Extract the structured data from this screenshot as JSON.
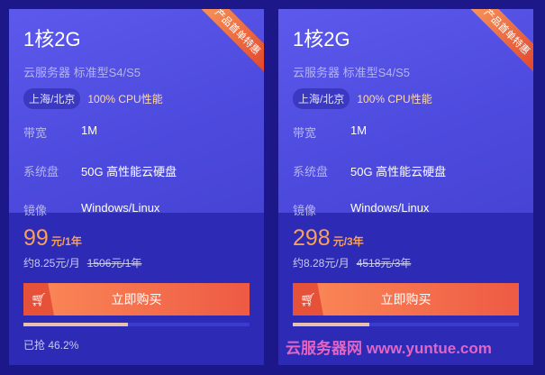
{
  "cards": [
    {
      "title": "1核2G",
      "subtitle": "云服务器 标准型S4/S5",
      "region": "上海/北京",
      "cpu": "100% CPU性能",
      "ribbon": "产品首单特惠",
      "specs": [
        {
          "k": "带宽",
          "v": "1M"
        },
        {
          "k": "系统盘",
          "v": "50G 高性能云硬盘"
        },
        {
          "k": "镜像",
          "v": "Windows/Linux"
        }
      ],
      "price": "99",
      "unit": "元/1年",
      "monthly": "约8.25元/月",
      "original": "1506元/1年",
      "buy": "立即购买",
      "progress": 46.2,
      "sold": "已抢 46.2%"
    },
    {
      "title": "1核2G",
      "subtitle": "云服务器 标准型S4/S5",
      "region": "上海/北京",
      "cpu": "100% CPU性能",
      "ribbon": "产品首单特惠",
      "specs": [
        {
          "k": "带宽",
          "v": "1M"
        },
        {
          "k": "系统盘",
          "v": "50G 高性能云硬盘"
        },
        {
          "k": "镜像",
          "v": "Windows/Linux"
        }
      ],
      "price": "298",
      "unit": "元/3年",
      "monthly": "约8.28元/月",
      "original": "4518元/3年",
      "buy": "立即购买",
      "progress": 34
    }
  ],
  "watermark": "云服务器网 www.yuntue.com",
  "colors": {
    "background": "#1c1889",
    "price": "#f7a05c",
    "button": "#ee5a44"
  }
}
